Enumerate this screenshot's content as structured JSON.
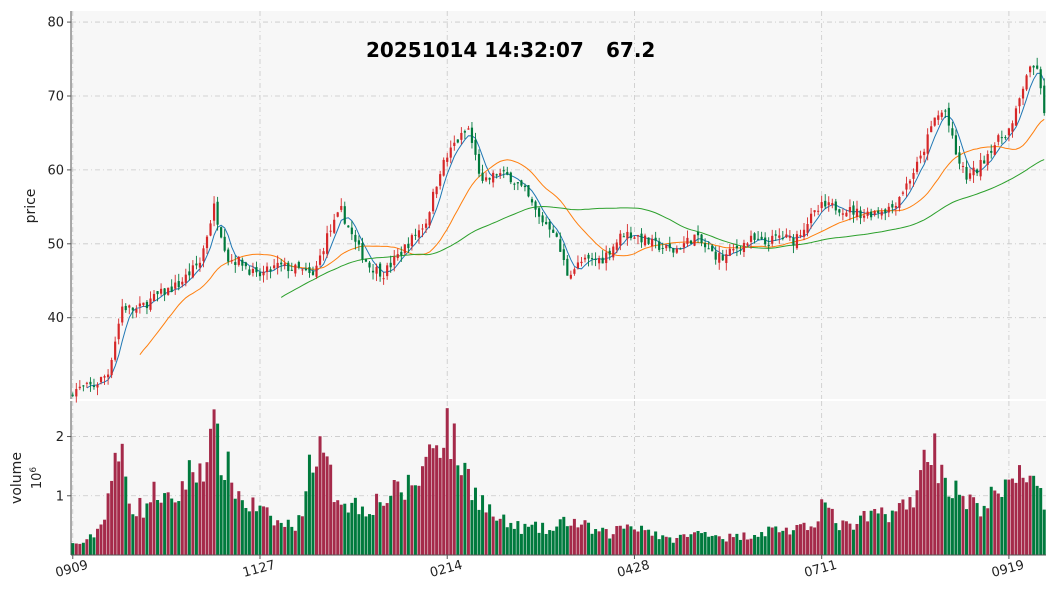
{
  "chart_data": {
    "type": "candlestick",
    "headline": {
      "timestamp": "20251014 14:32:07",
      "value": "67.2"
    },
    "price_panel": {
      "ylabel": "price",
      "yticks": [
        40,
        50,
        60,
        70,
        80
      ],
      "ylim": [
        29,
        81.5
      ],
      "grid": true
    },
    "volume_panel": {
      "ylabel": "volume",
      "exponent_label": "10",
      "exponent_power": "6",
      "yticks": [
        1,
        2
      ],
      "ylim": [
        0,
        2.6
      ],
      "grid": true
    },
    "x_tick_labels": [
      "0909",
      "1127",
      "0214",
      "0428",
      "0711",
      "0919"
    ],
    "x_tick_index": [
      0,
      53,
      106,
      159,
      212,
      265
    ],
    "colors": {
      "up": "#d62728",
      "down": "#007a3d",
      "volume_up": "#a52a4a",
      "volume_down": "#007a3d",
      "ma5": "#1f77b4",
      "ma20": "#ff7f0e",
      "ma60": "#2ca02c",
      "panel_bg": "#f7f7f7"
    },
    "price_anchors": [
      [
        0,
        30.2
      ],
      [
        6,
        30.8
      ],
      [
        10,
        32.5
      ],
      [
        14,
        41.5
      ],
      [
        18,
        41
      ],
      [
        24,
        43
      ],
      [
        30,
        44.5
      ],
      [
        36,
        47.5
      ],
      [
        40,
        55
      ],
      [
        44,
        48
      ],
      [
        48,
        47.5
      ],
      [
        52,
        45.5
      ],
      [
        58,
        47
      ],
      [
        64,
        46.5
      ],
      [
        68,
        45.5
      ],
      [
        72,
        51
      ],
      [
        76,
        54.5
      ],
      [
        80,
        50
      ],
      [
        84,
        47
      ],
      [
        88,
        46
      ],
      [
        94,
        49.5
      ],
      [
        100,
        53
      ],
      [
        104,
        60
      ],
      [
        108,
        63.5
      ],
      [
        112,
        65.5
      ],
      [
        116,
        58
      ],
      [
        120,
        59.5
      ],
      [
        124,
        59
      ],
      [
        128,
        57
      ],
      [
        132,
        53.5
      ],
      [
        136,
        52
      ],
      [
        140,
        46
      ],
      [
        144,
        47.5
      ],
      [
        150,
        48
      ],
      [
        156,
        51.5
      ],
      [
        160,
        51
      ],
      [
        164,
        50
      ],
      [
        170,
        49
      ],
      [
        176,
        51
      ],
      [
        180,
        49
      ],
      [
        184,
        48
      ],
      [
        188,
        49.5
      ],
      [
        192,
        50.5
      ],
      [
        196,
        50
      ],
      [
        200,
        51
      ],
      [
        204,
        50.5
      ],
      [
        208,
        53
      ],
      [
        212,
        55
      ],
      [
        216,
        55
      ],
      [
        220,
        54.5
      ],
      [
        224,
        54
      ],
      [
        228,
        54.5
      ],
      [
        232,
        55
      ],
      [
        236,
        58
      ],
      [
        240,
        61.5
      ],
      [
        244,
        67
      ],
      [
        247,
        68
      ],
      [
        250,
        62
      ],
      [
        253,
        59
      ],
      [
        256,
        60
      ],
      [
        260,
        63
      ],
      [
        264,
        65
      ],
      [
        266,
        66
      ],
      [
        270,
        73
      ],
      [
        273,
        74
      ],
      [
        275,
        67.2
      ]
    ],
    "volume_anchors": [
      [
        0,
        0.18
      ],
      [
        4,
        0.22
      ],
      [
        8,
        0.5
      ],
      [
        11,
        1.3
      ],
      [
        14,
        1.7
      ],
      [
        17,
        0.8
      ],
      [
        20,
        0.8
      ],
      [
        24,
        1.1
      ],
      [
        28,
        0.8
      ],
      [
        32,
        1.3
      ],
      [
        36,
        1.5
      ],
      [
        40,
        2.0
      ],
      [
        44,
        1.4
      ],
      [
        48,
        0.9
      ],
      [
        52,
        0.8
      ],
      [
        56,
        0.6
      ],
      [
        60,
        0.5
      ],
      [
        64,
        0.55
      ],
      [
        68,
        1.8
      ],
      [
        71,
        1.6
      ],
      [
        74,
        1.1
      ],
      [
        78,
        0.9
      ],
      [
        82,
        0.8
      ],
      [
        86,
        0.9
      ],
      [
        90,
        1.0
      ],
      [
        94,
        1.1
      ],
      [
        98,
        1.3
      ],
      [
        102,
        1.9
      ],
      [
        106,
        2.2
      ],
      [
        108,
        1.8
      ],
      [
        112,
        1.3
      ],
      [
        116,
        0.9
      ],
      [
        120,
        0.6
      ],
      [
        124,
        0.5
      ],
      [
        128,
        0.45
      ],
      [
        132,
        0.45
      ],
      [
        136,
        0.4
      ],
      [
        140,
        0.6
      ],
      [
        144,
        0.5
      ],
      [
        148,
        0.4
      ],
      [
        152,
        0.35
      ],
      [
        156,
        0.5
      ],
      [
        160,
        0.5
      ],
      [
        164,
        0.4
      ],
      [
        168,
        0.25
      ],
      [
        172,
        0.3
      ],
      [
        176,
        0.35
      ],
      [
        180,
        0.4
      ],
      [
        184,
        0.3
      ],
      [
        188,
        0.3
      ],
      [
        192,
        0.35
      ],
      [
        196,
        0.4
      ],
      [
        200,
        0.45
      ],
      [
        204,
        0.4
      ],
      [
        208,
        0.45
      ],
      [
        210,
        0.6
      ],
      [
        212,
        0.9
      ],
      [
        216,
        0.55
      ],
      [
        220,
        0.45
      ],
      [
        224,
        0.6
      ],
      [
        228,
        0.7
      ],
      [
        232,
        0.75
      ],
      [
        236,
        0.8
      ],
      [
        240,
        1.25
      ],
      [
        242,
        2.0
      ],
      [
        245,
        1.6
      ],
      [
        248,
        1.2
      ],
      [
        252,
        0.9
      ],
      [
        256,
        0.8
      ],
      [
        260,
        0.95
      ],
      [
        264,
        1.05
      ],
      [
        268,
        1.55
      ],
      [
        271,
        1.3
      ],
      [
        275,
        0.8
      ]
    ]
  }
}
